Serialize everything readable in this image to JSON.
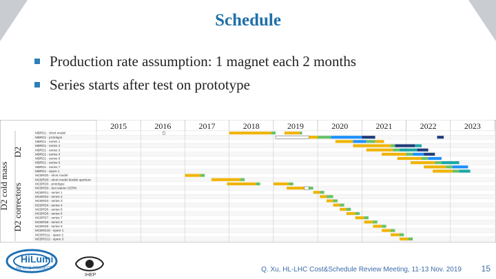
{
  "title": "Schedule",
  "bullets": [
    "Production rate assumption: 1 magnet each 2 months",
    "Series starts after test on prototype"
  ],
  "gantt": {
    "years": [
      "2015",
      "2016",
      "2017",
      "2018",
      "2019",
      "2020",
      "2021",
      "2022",
      "2023"
    ],
    "group_labels": [
      {
        "text": "D2",
        "rows": [
          0,
          9
        ]
      },
      {
        "text": "D2 correctors",
        "rows": [
          10,
          25
        ]
      },
      {
        "text": "D2 cold mass",
        "rows": [
          0,
          25
        ]
      }
    ],
    "rows": [
      "MBRD1 - short model",
      "MBRD1 - prototype",
      "MBRD1 - series 1",
      "MBRD1 - series 2",
      "MBRD1 - series 3",
      "MBRD1 - series 4",
      "MBRD1 - series 5",
      "MBRD1 - series 6",
      "MBRD1 - series 7",
      "MBRD1 - spare 1",
      "MCBRD0 - short model",
      "MCBRD0 - short model double aperture",
      "MCBRD0 - prototype",
      "MCBRD0 - test station CERN",
      "MCBRD1 - series 1",
      "MCBRD2 - series 2",
      "MCBRD3 - series 3",
      "MCBRD4 - series 4",
      "MCBRD5 - series 5",
      "MCBRD6 - series 6",
      "MCBRD7 - series 7",
      "MCBRD8 - series 8",
      "MCBRD9 - series 9",
      "MCBRD10 - spare 1",
      "MCBRD11 - spare 2",
      "MCBRD12 - spare 3"
    ],
    "bars": [
      {
        "row": 0,
        "start": 2016.5,
        "end": 2016.55,
        "c": "mark"
      },
      {
        "row": 0,
        "start": 2018.0,
        "end": 2018.95,
        "c": "orange"
      },
      {
        "row": 0,
        "start": 2018.95,
        "end": 2019.05,
        "c": "green"
      },
      {
        "row": 0,
        "start": 2019.25,
        "end": 2019.6,
        "c": "orange"
      },
      {
        "row": 0,
        "start": 2019.6,
        "end": 2019.65,
        "c": "green"
      },
      {
        "row": 1,
        "start": 2019.05,
        "end": 2019.8,
        "c": "mark"
      },
      {
        "row": 1,
        "start": 2019.8,
        "end": 2020.0,
        "c": "orange"
      },
      {
        "row": 1,
        "start": 2020.0,
        "end": 2020.3,
        "c": "green"
      },
      {
        "row": 1,
        "start": 2020.3,
        "end": 2021.0,
        "c": "blue"
      },
      {
        "row": 1,
        "start": 2021.0,
        "end": 2021.3,
        "c": "navy"
      },
      {
        "row": 1,
        "start": 2022.7,
        "end": 2022.85,
        "c": "navy"
      },
      {
        "row": 2,
        "start": 2020.4,
        "end": 2020.8,
        "c": "orange"
      },
      {
        "row": 2,
        "start": 2020.8,
        "end": 2021.1,
        "c": "blue"
      },
      {
        "row": 2,
        "start": 2021.1,
        "end": 2021.3,
        "c": "green"
      },
      {
        "row": 2,
        "start": 2021.3,
        "end": 2021.5,
        "c": "orange"
      },
      {
        "row": 3,
        "start": 2020.8,
        "end": 2021.4,
        "c": "orange"
      },
      {
        "row": 3,
        "start": 2021.4,
        "end": 2021.65,
        "c": "orange"
      },
      {
        "row": 3,
        "start": 2021.65,
        "end": 2021.75,
        "c": "green"
      },
      {
        "row": 3,
        "start": 2021.75,
        "end": 2022.2,
        "c": "navy"
      },
      {
        "row": 3,
        "start": 2022.2,
        "end": 2022.35,
        "c": "teal"
      },
      {
        "row": 4,
        "start": 2021.1,
        "end": 2021.7,
        "c": "orange"
      },
      {
        "row": 4,
        "start": 2021.7,
        "end": 2021.85,
        "c": "green"
      },
      {
        "row": 4,
        "start": 2021.85,
        "end": 2022.25,
        "c": "teal"
      },
      {
        "row": 4,
        "start": 2022.25,
        "end": 2022.5,
        "c": "navy"
      },
      {
        "row": 5,
        "start": 2021.45,
        "end": 2022.0,
        "c": "orange"
      },
      {
        "row": 5,
        "start": 2022.0,
        "end": 2022.15,
        "c": "green"
      },
      {
        "row": 5,
        "start": 2022.15,
        "end": 2022.4,
        "c": "blue"
      },
      {
        "row": 5,
        "start": 2022.4,
        "end": 2022.65,
        "c": "navy"
      },
      {
        "row": 6,
        "start": 2021.8,
        "end": 2022.35,
        "c": "orange"
      },
      {
        "row": 6,
        "start": 2022.35,
        "end": 2022.5,
        "c": "green"
      },
      {
        "row": 6,
        "start": 2022.5,
        "end": 2022.8,
        "c": "blue"
      },
      {
        "row": 7,
        "start": 2022.1,
        "end": 2022.65,
        "c": "orange"
      },
      {
        "row": 7,
        "start": 2022.65,
        "end": 2022.8,
        "c": "green"
      },
      {
        "row": 7,
        "start": 2022.8,
        "end": 2023.2,
        "c": "teal"
      },
      {
        "row": 8,
        "start": 2022.4,
        "end": 2022.9,
        "c": "orange"
      },
      {
        "row": 8,
        "start": 2022.9,
        "end": 2023.05,
        "c": "green"
      },
      {
        "row": 8,
        "start": 2023.05,
        "end": 2023.4,
        "c": "blue"
      },
      {
        "row": 9,
        "start": 2022.6,
        "end": 2023.05,
        "c": "orange"
      },
      {
        "row": 9,
        "start": 2023.05,
        "end": 2023.2,
        "c": "green"
      },
      {
        "row": 9,
        "start": 2023.2,
        "end": 2023.45,
        "c": "teal"
      },
      {
        "row": 10,
        "start": 2017.0,
        "end": 2017.35,
        "c": "orange"
      },
      {
        "row": 10,
        "start": 2017.35,
        "end": 2017.45,
        "c": "green"
      },
      {
        "row": 11,
        "start": 2017.6,
        "end": 2018.25,
        "c": "orange"
      },
      {
        "row": 11,
        "start": 2018.25,
        "end": 2018.35,
        "c": "green"
      },
      {
        "row": 12,
        "start": 2017.95,
        "end": 2018.6,
        "c": "orange"
      },
      {
        "row": 12,
        "start": 2018.6,
        "end": 2018.7,
        "c": "green"
      },
      {
        "row": 12,
        "start": 2019.0,
        "end": 2019.35,
        "c": "orange"
      },
      {
        "row": 12,
        "start": 2019.35,
        "end": 2019.45,
        "c": "green"
      },
      {
        "row": 13,
        "start": 2019.3,
        "end": 2019.7,
        "c": "orange"
      },
      {
        "row": 13,
        "start": 2019.7,
        "end": 2019.8,
        "c": "mark"
      },
      {
        "row": 13,
        "start": 2019.8,
        "end": 2019.9,
        "c": "green"
      },
      {
        "row": 14,
        "start": 2019.9,
        "end": 2020.05,
        "c": "orange"
      },
      {
        "row": 14,
        "start": 2020.05,
        "end": 2020.15,
        "c": "green"
      },
      {
        "row": 15,
        "start": 2020.05,
        "end": 2020.2,
        "c": "orange"
      },
      {
        "row": 15,
        "start": 2020.2,
        "end": 2020.35,
        "c": "green"
      },
      {
        "row": 16,
        "start": 2020.2,
        "end": 2020.35,
        "c": "orange"
      },
      {
        "row": 16,
        "start": 2020.35,
        "end": 2020.45,
        "c": "green"
      },
      {
        "row": 17,
        "start": 2020.35,
        "end": 2020.5,
        "c": "orange"
      },
      {
        "row": 17,
        "start": 2020.5,
        "end": 2020.6,
        "c": "green"
      },
      {
        "row": 18,
        "start": 2020.5,
        "end": 2020.65,
        "c": "orange"
      },
      {
        "row": 18,
        "start": 2020.65,
        "end": 2020.75,
        "c": "green"
      },
      {
        "row": 19,
        "start": 2020.65,
        "end": 2020.85,
        "c": "orange"
      },
      {
        "row": 19,
        "start": 2020.85,
        "end": 2020.95,
        "c": "green"
      },
      {
        "row": 20,
        "start": 2020.85,
        "end": 2021.05,
        "c": "orange"
      },
      {
        "row": 20,
        "start": 2021.05,
        "end": 2021.15,
        "c": "green"
      },
      {
        "row": 21,
        "start": 2021.05,
        "end": 2021.25,
        "c": "orange"
      },
      {
        "row": 21,
        "start": 2021.25,
        "end": 2021.35,
        "c": "green"
      },
      {
        "row": 22,
        "start": 2021.25,
        "end": 2021.45,
        "c": "orange"
      },
      {
        "row": 22,
        "start": 2021.45,
        "end": 2021.55,
        "c": "green"
      },
      {
        "row": 23,
        "start": 2021.45,
        "end": 2021.65,
        "c": "orange"
      },
      {
        "row": 23,
        "start": 2021.65,
        "end": 2021.75,
        "c": "green"
      },
      {
        "row": 24,
        "start": 2021.65,
        "end": 2021.85,
        "c": "orange"
      },
      {
        "row": 24,
        "start": 2021.85,
        "end": 2021.95,
        "c": "green"
      },
      {
        "row": 25,
        "start": 2021.85,
        "end": 2022.05,
        "c": "orange"
      },
      {
        "row": 25,
        "start": 2022.05,
        "end": 2022.15,
        "c": "green"
      }
    ],
    "colors": {
      "orange": "#f0b400",
      "green": "#66c266",
      "blue": "#1e90ff",
      "navy": "#1f3b7a",
      "teal": "#1aa6a6",
      "mark": "#ffffff",
      "grid": "#e6e6e6"
    }
  },
  "footer": "Q. Xu, HL-LHC Cost&Schedule Review Meeting, 11-13 Nov. 2019",
  "page_number": "15",
  "logos": {
    "hilumi_main": "HiLumi",
    "hilumi_sub": "HL-LHC PROJECT",
    "ihep": "IHEP"
  }
}
